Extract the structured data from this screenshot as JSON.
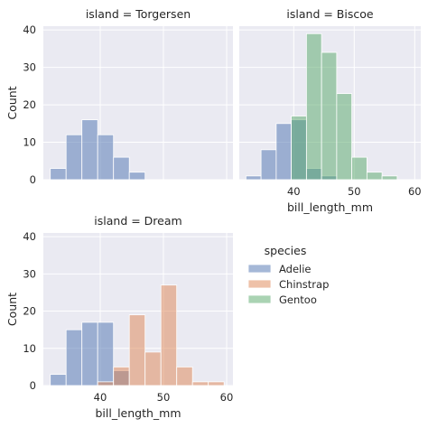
{
  "chart_data": {
    "type": "bar",
    "xlabel": "bill_length_mm",
    "ylabel": "Count",
    "xlim": [
      31,
      61
    ],
    "ylim": [
      0,
      41
    ],
    "xticks": [
      40,
      50,
      60
    ],
    "yticks": [
      0,
      10,
      20,
      30,
      40
    ],
    "grid": true,
    "legend_placement": "center-right",
    "bin_edges": [
      32.1,
      34.6,
      37.1,
      39.6,
      42.1,
      44.6,
      47.1,
      49.6,
      52.1,
      54.6,
      57.1,
      59.6
    ],
    "legend": {
      "title": "species",
      "entries": [
        "Adelie",
        "Chinstrap",
        "Gentoo"
      ]
    },
    "colors": {
      "Adelie": "#4c72b0",
      "Chinstrap": "#dd8452",
      "Gentoo": "#55a868",
      "panel_background": "#eaeaf2",
      "grid": "#ffffff"
    },
    "panels": [
      {
        "title": "island = Torgersen",
        "series": [
          {
            "name": "Adelie",
            "values": [
              3,
              12,
              16,
              12,
              6,
              2,
              0,
              0,
              0,
              0,
              0
            ]
          }
        ]
      },
      {
        "title": "island = Biscoe",
        "series": [
          {
            "name": "Adelie",
            "values": [
              1,
              8,
              15,
              16,
              3,
              1,
              0,
              0,
              0,
              0,
              0
            ]
          },
          {
            "name": "Gentoo",
            "values": [
              0,
              0,
              0,
              17,
              39,
              34,
              23,
              6,
              2,
              1,
              0
            ]
          }
        ]
      },
      {
        "title": "island = Dream",
        "series": [
          {
            "name": "Adelie",
            "values": [
              3,
              15,
              17,
              17,
              4,
              0,
              0,
              0,
              0,
              0,
              0
            ]
          },
          {
            "name": "Chinstrap",
            "values": [
              0,
              0,
              0,
              1,
              5,
              19,
              9,
              27,
              5,
              1,
              1
            ]
          }
        ]
      }
    ]
  }
}
